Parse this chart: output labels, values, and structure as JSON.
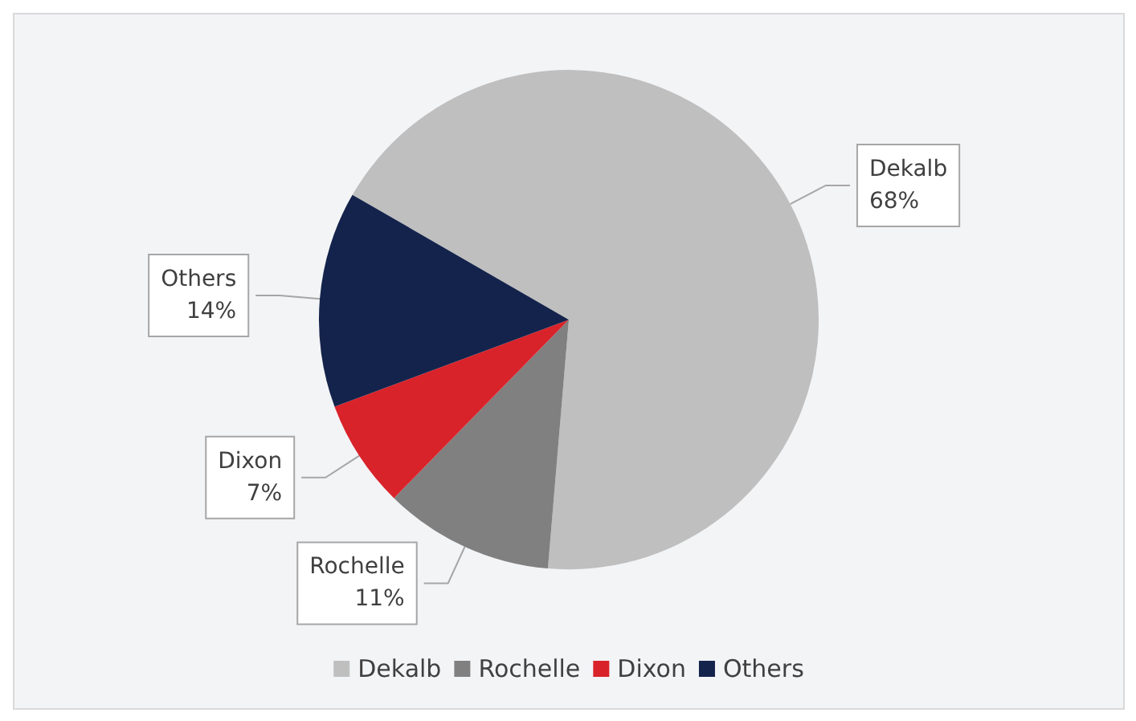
{
  "chart_data": {
    "type": "pie",
    "categories": [
      "Dekalb",
      "Rochelle",
      "Dixon",
      "Others"
    ],
    "values": [
      68,
      11,
      7,
      14
    ],
    "colors": [
      "#bfbfbf",
      "#808080",
      "#d9232a",
      "#14234b"
    ],
    "value_labels": [
      "68%",
      "11%",
      "7%",
      "14%"
    ],
    "legend": "bottom"
  }
}
